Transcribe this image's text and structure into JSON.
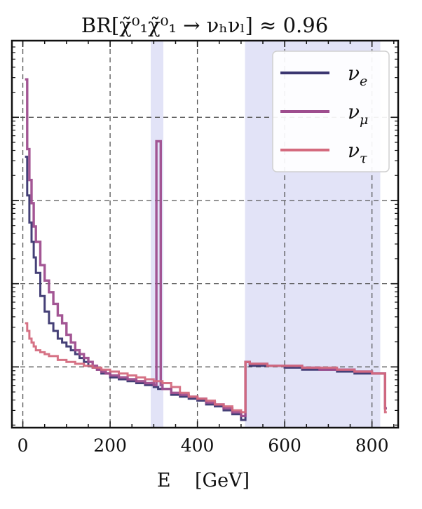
{
  "chart_data": {
    "type": "line",
    "drawstyle": "steps",
    "title": "BR[χ̃⁰₁χ̃⁰₁ → νₕνₗ] ≈ 0.96",
    "xlabel": "E    [GeV]",
    "ylabel": "",
    "xlim": [
      -25,
      860
    ],
    "ylim": [
      0,
      100
    ],
    "yscale": "unlabeled",
    "grid": true,
    "legend": "top-right",
    "x_ticks": [
      0,
      200,
      400,
      600,
      800
    ],
    "x_tick_labels": [
      "0",
      "200",
      "400",
      "600",
      "800"
    ],
    "shaded_bands": [
      {
        "x": [
          293,
          322
        ]
      },
      {
        "x": [
          509,
          819
        ]
      }
    ],
    "series": [
      {
        "name": "ν_e",
        "color": "#3b3670",
        "x": [
          5,
          10,
          15,
          20,
          25,
          30,
          40,
          50,
          60,
          70,
          80,
          90,
          100,
          110,
          120,
          130,
          140,
          150,
          160,
          170,
          180,
          190,
          200,
          220,
          240,
          260,
          280,
          300,
          310,
          320,
          340,
          360,
          380,
          400,
          420,
          440,
          460,
          480,
          500,
          510,
          520,
          560,
          600,
          640,
          680,
          720,
          760,
          800,
          820,
          830
        ],
        "y": [
          70,
          60,
          53,
          48,
          44,
          40,
          34,
          30,
          27,
          25,
          23,
          22,
          21,
          20,
          19,
          18,
          17,
          16,
          15.5,
          15,
          14,
          14,
          13,
          12.5,
          12,
          11.5,
          11,
          10.5,
          10,
          10,
          8.5,
          8,
          7.5,
          7,
          6,
          5.5,
          4.5,
          3.5,
          2,
          17,
          16,
          16,
          15.5,
          15,
          15,
          14.5,
          14,
          14,
          14,
          5
        ]
      },
      {
        "name": "ν_μ",
        "color": "#9e4d8e",
        "x": [
          5,
          10,
          15,
          20,
          25,
          30,
          40,
          50,
          60,
          70,
          80,
          90,
          100,
          110,
          120,
          130,
          140,
          150,
          160,
          170,
          180,
          190,
          200,
          220,
          240,
          260,
          280,
          300,
          306,
          316,
          320,
          340,
          360,
          380,
          400,
          420,
          440,
          460,
          480,
          500,
          510,
          520,
          560,
          600,
          640,
          680,
          720,
          760,
          800,
          820,
          830
        ],
        "y": [
          90,
          72,
          64,
          58,
          52,
          48,
          42,
          38,
          35,
          32,
          29,
          27,
          24,
          22,
          20,
          19,
          18,
          17,
          16,
          15,
          14.5,
          14,
          13.5,
          13,
          12.5,
          12,
          11.5,
          11,
          74,
          11,
          10,
          9,
          8.5,
          8,
          7.5,
          6.5,
          6,
          5,
          4,
          3,
          17,
          16.5,
          16,
          16,
          15.5,
          15,
          15,
          14.5,
          14,
          14,
          5
        ]
      },
      {
        "name": "ν_τ",
        "color": "#d46a7e",
        "x": [
          5,
          10,
          15,
          20,
          25,
          30,
          40,
          50,
          60,
          80,
          100,
          120,
          140,
          160,
          180,
          200,
          220,
          240,
          260,
          280,
          300,
          320,
          340,
          360,
          380,
          400,
          420,
          440,
          460,
          480,
          500,
          510,
          520,
          560,
          600,
          640,
          680,
          720,
          760,
          800,
          820,
          830
        ],
        "y": [
          27,
          25,
          23,
          22,
          21,
          20,
          19.5,
          19,
          18.5,
          17.5,
          17,
          16.5,
          16,
          15.5,
          15,
          14.5,
          14,
          13.5,
          13,
          12.5,
          12,
          11.5,
          10.5,
          9,
          8,
          7.5,
          7,
          6,
          5.5,
          4.5,
          4,
          17,
          16.5,
          16,
          16,
          15.5,
          15.5,
          15,
          14.5,
          14,
          14,
          4
        ]
      }
    ]
  }
}
